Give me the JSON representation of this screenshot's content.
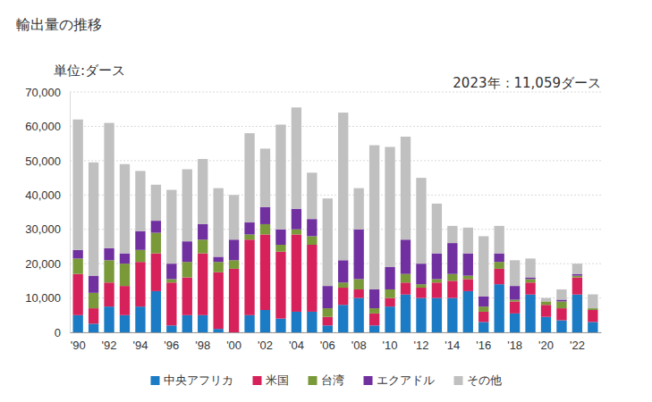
{
  "chart_data": {
    "type": "bar",
    "stacked": true,
    "title": "輸出量の推移",
    "subtitle": "単位:ダース",
    "annotation": "2023年：11,059ダース",
    "categories": [
      "'90",
      null,
      "'92",
      null,
      "'94",
      null,
      "'96",
      null,
      "'98",
      null,
      "'00",
      null,
      "'02",
      null,
      "'04",
      null,
      "'06",
      null,
      "'08",
      null,
      "'10",
      null,
      "'12",
      null,
      "'14",
      null,
      "'16",
      null,
      "'18",
      null,
      "'20",
      null,
      "'22",
      null
    ],
    "series": [
      {
        "name": "中央アフリカ",
        "color": "#1b7bc4",
        "values": [
          5000,
          2500,
          7500,
          5000,
          7500,
          12000,
          2000,
          5000,
          5000,
          1000,
          0,
          5000,
          6500,
          4000,
          6000,
          6000,
          2000,
          8000,
          10000,
          2000,
          7500,
          11000,
          10000,
          10000,
          10000,
          12000,
          3000,
          14000,
          5500,
          11000,
          4500,
          3500,
          11000,
          3000
        ]
      },
      {
        "name": "米国",
        "color": "#d6215b",
        "values": [
          12000,
          4500,
          7000,
          8500,
          13000,
          11000,
          12500,
          11000,
          18000,
          16500,
          18500,
          22000,
          22000,
          19500,
          22500,
          19500,
          2500,
          5000,
          2500,
          3500,
          2500,
          3500,
          3000,
          4500,
          5000,
          3500,
          3000,
          4500,
          3500,
          3500,
          3500,
          3500,
          5000,
          3500
        ]
      },
      {
        "name": "台湾",
        "color": "#7a9a3a",
        "values": [
          4500,
          4500,
          6500,
          6500,
          3500,
          6000,
          1000,
          4500,
          4000,
          3000,
          2500,
          1500,
          3000,
          2000,
          1500,
          2500,
          2500,
          1500,
          3000,
          1500,
          2500,
          2500,
          1000,
          1000,
          2000,
          1000,
          1500,
          2000,
          500,
          1000,
          1000,
          2000,
          500,
          500
        ]
      },
      {
        "name": "エクアドル",
        "color": "#7030a0",
        "values": [
          2500,
          5000,
          3500,
          3000,
          5500,
          3500,
          4500,
          6000,
          4500,
          1500,
          6000,
          3500,
          5000,
          4500,
          6000,
          5000,
          6500,
          6500,
          14500,
          5500,
          6500,
          10000,
          6000,
          7500,
          9000,
          6500,
          3000,
          2500,
          4000,
          500,
          0,
          500,
          500,
          0
        ]
      },
      {
        "name": "その他",
        "color": "#c0c0c0",
        "values": [
          38000,
          33000,
          36500,
          26000,
          17500,
          10500,
          21500,
          21000,
          19000,
          20000,
          13000,
          26000,
          17000,
          30500,
          29500,
          13500,
          25500,
          43000,
          12000,
          42000,
          35000,
          30000,
          25000,
          14500,
          5000,
          7500,
          17500,
          8000,
          7500,
          5500,
          1000,
          3000,
          3000,
          4059
        ]
      }
    ],
    "ylim": [
      0,
      70000
    ],
    "yticks": [
      0,
      {
        "value": 10000,
        "label": "10,000"
      },
      {
        "value": 20000,
        "label": "20,000"
      },
      {
        "value": 30000,
        "label": "30,000"
      },
      {
        "value": 40000,
        "label": "40,000"
      },
      {
        "value": 50000,
        "label": "50,000"
      },
      {
        "value": 60000,
        "label": "60,000"
      },
      {
        "value": 70000,
        "label": "70,000"
      }
    ],
    "grid": true,
    "legend": "bottom"
  }
}
